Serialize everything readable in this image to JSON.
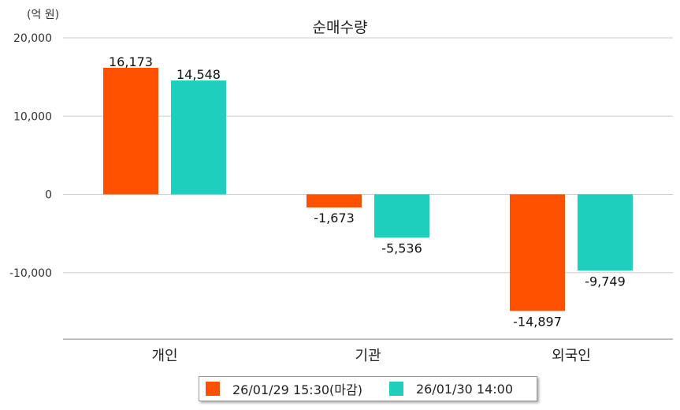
{
  "unit_label": "(억 원)",
  "chart_data": {
    "type": "bar",
    "title": "순매수량",
    "ylabel": "(억 원)",
    "ylim": [
      -18500,
      20000
    ],
    "yticks": [
      20000,
      10000,
      0,
      -10000
    ],
    "ytick_labels": [
      "20,000",
      "10,000",
      "0",
      "-10,000"
    ],
    "grid": true,
    "legend_position": "bottom",
    "categories": [
      "개인",
      "기관",
      "외국인"
    ],
    "series": [
      {
        "name": "26/01/29 15:30(마감)",
        "color": "#ff5000",
        "values": [
          16173,
          -1673,
          -14897
        ],
        "labels": [
          "16,173",
          "-1,673",
          "-14,897"
        ]
      },
      {
        "name": "26/01/30 14:00",
        "color": "#1ecfbe",
        "values": [
          14548,
          -5536,
          -9749
        ],
        "labels": [
          "14,548",
          "-5,536",
          "-9,749"
        ]
      }
    ]
  }
}
